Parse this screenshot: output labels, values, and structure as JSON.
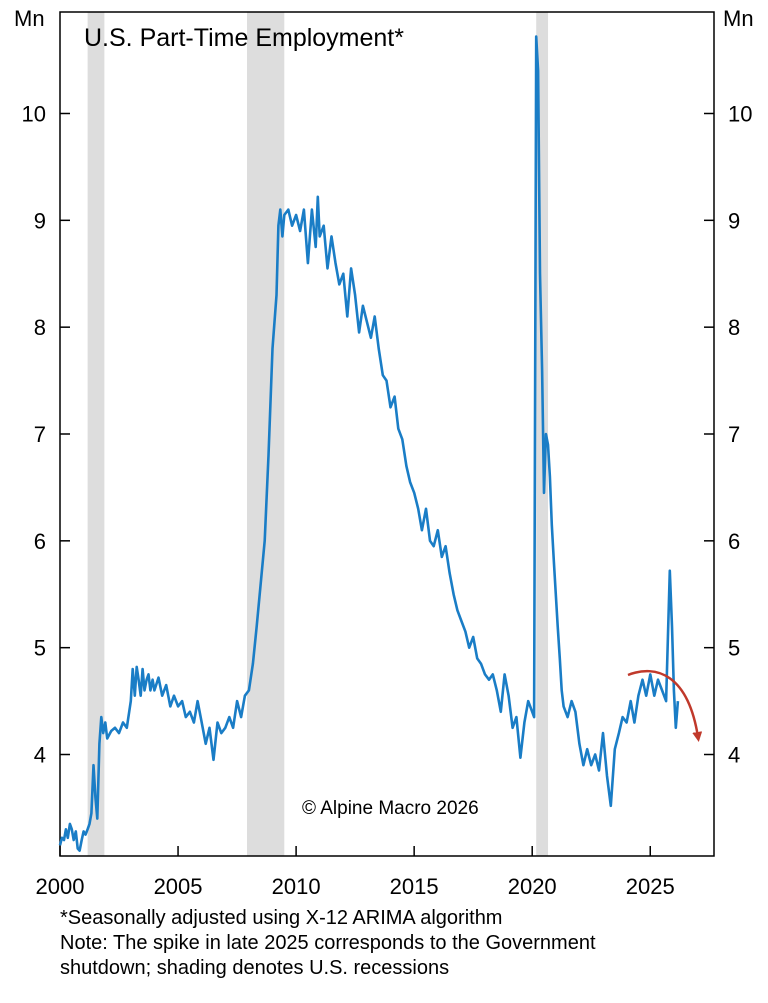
{
  "chart_data": {
    "type": "line",
    "title": "U.S. Part-Time Employment*",
    "ylabel_left": "Mn",
    "ylabel_right": "Mn",
    "credit": "© Alpine Macro 2026",
    "xlim": [
      2000,
      2027.7
    ],
    "ylim": [
      3.05,
      10.95
    ],
    "x_ticks": [
      2000,
      2005,
      2010,
      2015,
      2020,
      2025
    ],
    "x_tick_labels": [
      "2000",
      "2005",
      "2010",
      "2015",
      "2020",
      "2025"
    ],
    "y_ticks": [
      4,
      5,
      6,
      7,
      8,
      9,
      10
    ],
    "y_tick_labels": [
      "4",
      "5",
      "6",
      "7",
      "8",
      "9",
      "10"
    ],
    "grid": false,
    "line_color": "#1a7dc6",
    "recession_color": "#dddddd",
    "annotation_arrow_color": "#c0392b",
    "recessions": [
      [
        2001.17,
        2001.88
      ],
      [
        2007.92,
        2009.5
      ],
      [
        2020.17,
        2020.67
      ]
    ],
    "series": [
      {
        "values": [
          [
            2000.0,
            3.15
          ],
          [
            2000.08,
            3.22
          ],
          [
            2000.17,
            3.2
          ],
          [
            2000.25,
            3.3
          ],
          [
            2000.33,
            3.22
          ],
          [
            2000.42,
            3.35
          ],
          [
            2000.5,
            3.3
          ],
          [
            2000.58,
            3.2
          ],
          [
            2000.67,
            3.28
          ],
          [
            2000.75,
            3.12
          ],
          [
            2000.83,
            3.1
          ],
          [
            2000.92,
            3.2
          ],
          [
            2001.0,
            3.28
          ],
          [
            2001.08,
            3.25
          ],
          [
            2001.17,
            3.3
          ],
          [
            2001.25,
            3.35
          ],
          [
            2001.33,
            3.45
          ],
          [
            2001.42,
            3.9
          ],
          [
            2001.5,
            3.6
          ],
          [
            2001.58,
            3.4
          ],
          [
            2001.67,
            4.1
          ],
          [
            2001.75,
            4.35
          ],
          [
            2001.83,
            4.2
          ],
          [
            2001.92,
            4.3
          ],
          [
            2002.0,
            4.15
          ],
          [
            2002.17,
            4.22
          ],
          [
            2002.33,
            4.25
          ],
          [
            2002.5,
            4.2
          ],
          [
            2002.67,
            4.3
          ],
          [
            2002.83,
            4.25
          ],
          [
            2003.0,
            4.5
          ],
          [
            2003.08,
            4.8
          ],
          [
            2003.17,
            4.55
          ],
          [
            2003.25,
            4.82
          ],
          [
            2003.33,
            4.7
          ],
          [
            2003.42,
            4.55
          ],
          [
            2003.5,
            4.8
          ],
          [
            2003.58,
            4.6
          ],
          [
            2003.67,
            4.7
          ],
          [
            2003.75,
            4.75
          ],
          [
            2003.83,
            4.6
          ],
          [
            2003.92,
            4.7
          ],
          [
            2004.0,
            4.6
          ],
          [
            2004.17,
            4.72
          ],
          [
            2004.33,
            4.55
          ],
          [
            2004.5,
            4.65
          ],
          [
            2004.67,
            4.45
          ],
          [
            2004.83,
            4.55
          ],
          [
            2005.0,
            4.45
          ],
          [
            2005.17,
            4.5
          ],
          [
            2005.33,
            4.35
          ],
          [
            2005.5,
            4.4
          ],
          [
            2005.67,
            4.3
          ],
          [
            2005.83,
            4.5
          ],
          [
            2006.0,
            4.3
          ],
          [
            2006.17,
            4.1
          ],
          [
            2006.33,
            4.25
          ],
          [
            2006.5,
            3.95
          ],
          [
            2006.67,
            4.3
          ],
          [
            2006.83,
            4.2
          ],
          [
            2007.0,
            4.25
          ],
          [
            2007.17,
            4.35
          ],
          [
            2007.33,
            4.25
          ],
          [
            2007.5,
            4.5
          ],
          [
            2007.67,
            4.35
          ],
          [
            2007.83,
            4.55
          ],
          [
            2008.0,
            4.6
          ],
          [
            2008.17,
            4.85
          ],
          [
            2008.33,
            5.2
          ],
          [
            2008.5,
            5.6
          ],
          [
            2008.67,
            6.0
          ],
          [
            2008.83,
            6.8
          ],
          [
            2009.0,
            7.8
          ],
          [
            2009.17,
            8.3
          ],
          [
            2009.25,
            8.95
          ],
          [
            2009.33,
            9.1
          ],
          [
            2009.42,
            8.85
          ],
          [
            2009.5,
            9.05
          ],
          [
            2009.67,
            9.1
          ],
          [
            2009.83,
            8.95
          ],
          [
            2010.0,
            9.05
          ],
          [
            2010.17,
            8.9
          ],
          [
            2010.33,
            9.1
          ],
          [
            2010.5,
            8.6
          ],
          [
            2010.67,
            9.1
          ],
          [
            2010.83,
            8.75
          ],
          [
            2010.92,
            9.22
          ],
          [
            2011.0,
            8.85
          ],
          [
            2011.17,
            8.95
          ],
          [
            2011.33,
            8.55
          ],
          [
            2011.5,
            8.85
          ],
          [
            2011.67,
            8.6
          ],
          [
            2011.83,
            8.4
          ],
          [
            2012.0,
            8.5
          ],
          [
            2012.17,
            8.1
          ],
          [
            2012.33,
            8.55
          ],
          [
            2012.5,
            8.3
          ],
          [
            2012.67,
            7.95
          ],
          [
            2012.83,
            8.2
          ],
          [
            2013.0,
            8.05
          ],
          [
            2013.17,
            7.9
          ],
          [
            2013.33,
            8.1
          ],
          [
            2013.5,
            7.8
          ],
          [
            2013.67,
            7.55
          ],
          [
            2013.83,
            7.5
          ],
          [
            2014.0,
            7.25
          ],
          [
            2014.17,
            7.35
          ],
          [
            2014.33,
            7.05
          ],
          [
            2014.5,
            6.95
          ],
          [
            2014.67,
            6.7
          ],
          [
            2014.83,
            6.55
          ],
          [
            2015.0,
            6.45
          ],
          [
            2015.17,
            6.3
          ],
          [
            2015.33,
            6.1
          ],
          [
            2015.5,
            6.3
          ],
          [
            2015.67,
            6.0
          ],
          [
            2015.83,
            5.95
          ],
          [
            2016.0,
            6.1
          ],
          [
            2016.17,
            5.85
          ],
          [
            2016.33,
            5.95
          ],
          [
            2016.5,
            5.7
          ],
          [
            2016.67,
            5.5
          ],
          [
            2016.83,
            5.35
          ],
          [
            2017.0,
            5.25
          ],
          [
            2017.17,
            5.15
          ],
          [
            2017.33,
            5.0
          ],
          [
            2017.5,
            5.1
          ],
          [
            2017.67,
            4.9
          ],
          [
            2017.83,
            4.85
          ],
          [
            2018.0,
            4.75
          ],
          [
            2018.17,
            4.7
          ],
          [
            2018.33,
            4.75
          ],
          [
            2018.5,
            4.6
          ],
          [
            2018.67,
            4.4
          ],
          [
            2018.83,
            4.75
          ],
          [
            2019.0,
            4.55
          ],
          [
            2019.17,
            4.25
          ],
          [
            2019.33,
            4.35
          ],
          [
            2019.5,
            3.97
          ],
          [
            2019.67,
            4.3
          ],
          [
            2019.83,
            4.5
          ],
          [
            2020.0,
            4.4
          ],
          [
            2020.08,
            4.35
          ],
          [
            2020.17,
            10.72
          ],
          [
            2020.25,
            10.4
          ],
          [
            2020.33,
            8.5
          ],
          [
            2020.42,
            7.6
          ],
          [
            2020.5,
            6.45
          ],
          [
            2020.58,
            7.0
          ],
          [
            2020.67,
            6.9
          ],
          [
            2020.75,
            6.6
          ],
          [
            2020.83,
            6.15
          ],
          [
            2020.92,
            5.8
          ],
          [
            2021.0,
            5.5
          ],
          [
            2021.08,
            5.2
          ],
          [
            2021.17,
            4.9
          ],
          [
            2021.25,
            4.6
          ],
          [
            2021.33,
            4.45
          ],
          [
            2021.5,
            4.35
          ],
          [
            2021.67,
            4.5
          ],
          [
            2021.83,
            4.4
          ],
          [
            2022.0,
            4.1
          ],
          [
            2022.17,
            3.9
          ],
          [
            2022.33,
            4.05
          ],
          [
            2022.5,
            3.9
          ],
          [
            2022.67,
            4.0
          ],
          [
            2022.83,
            3.85
          ],
          [
            2023.0,
            4.2
          ],
          [
            2023.17,
            3.8
          ],
          [
            2023.33,
            3.52
          ],
          [
            2023.5,
            4.05
          ],
          [
            2023.67,
            4.2
          ],
          [
            2023.83,
            4.35
          ],
          [
            2024.0,
            4.3
          ],
          [
            2024.17,
            4.5
          ],
          [
            2024.33,
            4.3
          ],
          [
            2024.5,
            4.55
          ],
          [
            2024.67,
            4.7
          ],
          [
            2024.83,
            4.55
          ],
          [
            2025.0,
            4.75
          ],
          [
            2025.17,
            4.55
          ],
          [
            2025.33,
            4.7
          ],
          [
            2025.5,
            4.6
          ],
          [
            2025.67,
            4.5
          ],
          [
            2025.83,
            5.72
          ],
          [
            2025.92,
            5.2
          ],
          [
            2026.0,
            4.6
          ],
          [
            2026.08,
            4.25
          ],
          [
            2026.17,
            4.5
          ]
        ]
      }
    ]
  },
  "footnotes": {
    "line1": "*Seasonally adjusted using X-12 ARIMA algorithm",
    "line2": "Note: The spike in late 2025 corresponds to the Government",
    "line3": "shutdown; shading denotes U.S. recessions"
  }
}
